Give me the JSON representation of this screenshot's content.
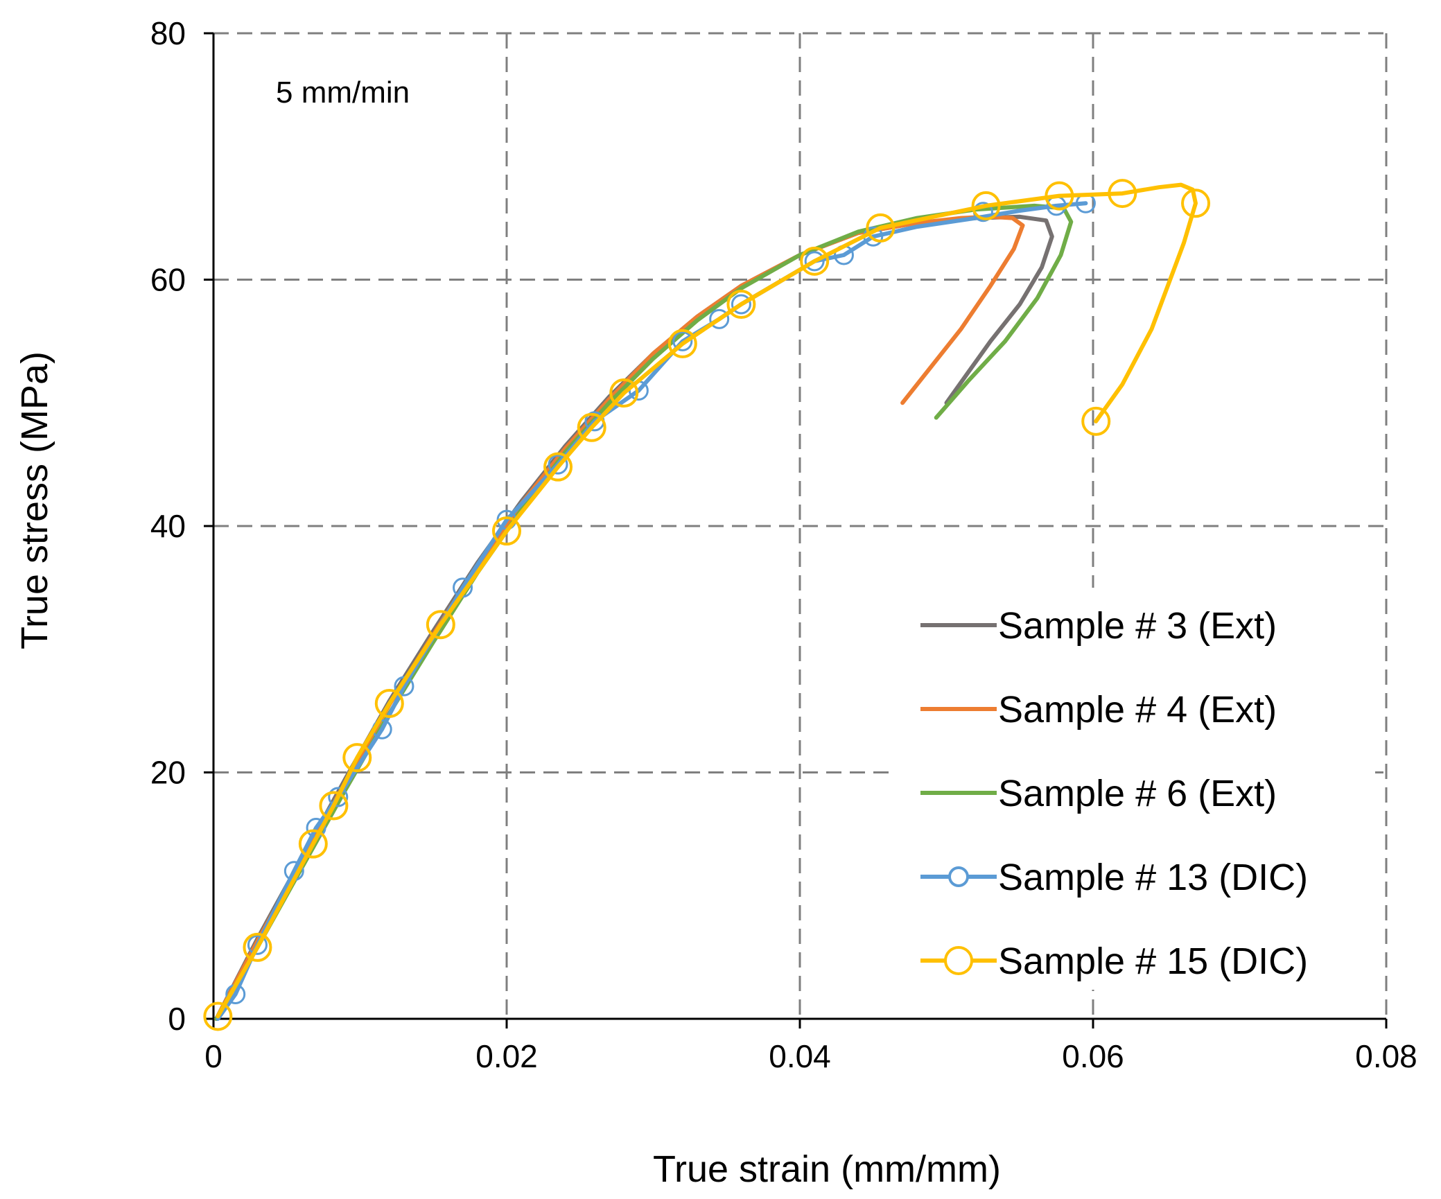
{
  "chart_data": {
    "type": "line",
    "xlabel": "True strain (mm/mm)",
    "ylabel": "True stress (MPa)",
    "annotation": "5 mm/min",
    "xlim": [
      0,
      0.08
    ],
    "ylim": [
      0,
      80
    ],
    "xticks": [
      0,
      0.02,
      0.04,
      0.06,
      0.08
    ],
    "xtick_labels": [
      "0",
      "0.02",
      "0.04",
      "0.06",
      "0.08"
    ],
    "yticks": [
      0,
      20,
      40,
      60,
      80
    ],
    "ytick_labels": [
      "0",
      "20",
      "40",
      "60",
      "80"
    ],
    "grid": "dashed",
    "legend_position": "bottom-right",
    "series": [
      {
        "name": "Sample # 3 (Ext)",
        "color": "#767171",
        "marker": "none",
        "x": [
          0.0002,
          0.003,
          0.006,
          0.009,
          0.012,
          0.015,
          0.018,
          0.021,
          0.024,
          0.027,
          0.03,
          0.033,
          0.036,
          0.04,
          0.044,
          0.048,
          0.052,
          0.055,
          0.0568,
          0.0572,
          0.0565,
          0.055,
          0.053,
          0.0515,
          0.05
        ],
        "y": [
          0,
          6.5,
          13,
          19.5,
          25.8,
          31.5,
          37,
          42,
          46.5,
          50.5,
          54,
          57,
          59.5,
          62,
          63.8,
          64.6,
          65,
          65.1,
          64.8,
          63.5,
          61,
          58,
          55,
          52.5,
          50
        ]
      },
      {
        "name": "Sample # 4 (Ext)",
        "color": "#ED7D31",
        "marker": "none",
        "x": [
          0.0002,
          0.003,
          0.006,
          0.009,
          0.012,
          0.015,
          0.018,
          0.021,
          0.024,
          0.027,
          0.03,
          0.033,
          0.036,
          0.04,
          0.044,
          0.048,
          0.051,
          0.053,
          0.0545,
          0.0552,
          0.0546,
          0.053,
          0.051,
          0.049,
          0.047
        ],
        "y": [
          0,
          6.3,
          12.8,
          19.2,
          25.5,
          31.2,
          36.8,
          41.8,
          46.3,
          50.3,
          54,
          57,
          59.5,
          62,
          63.8,
          64.6,
          65,
          65.1,
          65,
          64.4,
          62.5,
          59.5,
          56,
          53,
          50
        ]
      },
      {
        "name": "Sample # 6 (Ext)",
        "color": "#70AD47",
        "marker": "none",
        "x": [
          0.0002,
          0.003,
          0.006,
          0.009,
          0.012,
          0.015,
          0.018,
          0.021,
          0.024,
          0.027,
          0.03,
          0.033,
          0.036,
          0.04,
          0.044,
          0.048,
          0.052,
          0.056,
          0.058,
          0.0585,
          0.0578,
          0.0562,
          0.054,
          0.0515,
          0.0493
        ],
        "y": [
          0,
          5.8,
          12.2,
          18.6,
          24.8,
          30.6,
          36.2,
          41.3,
          46,
          50,
          53.6,
          56.7,
          59.3,
          62,
          63.9,
          65,
          65.7,
          66,
          65.8,
          64.7,
          62,
          58.5,
          55,
          51.8,
          48.8
        ]
      },
      {
        "name": "Sample # 13 (DIC)",
        "color": "#5B9BD5",
        "marker": "circle",
        "x": [
          0.0003,
          0.0015,
          0.003,
          0.0055,
          0.007,
          0.0085,
          0.0115,
          0.013,
          0.017,
          0.02,
          0.0235,
          0.026,
          0.029,
          0.032,
          0.0345,
          0.036,
          0.041,
          0.043,
          0.045,
          0.048,
          0.052,
          0.055,
          0.0575,
          0.0595
        ],
        "y": [
          0,
          2,
          6,
          12,
          15.5,
          18,
          23.5,
          27,
          35,
          40.5,
          45,
          48.5,
          51,
          55,
          56.8,
          58,
          61.5,
          62,
          63.5,
          64.3,
          65,
          65.6,
          66,
          66.2
        ],
        "marker_x": [
          0.0015,
          0.003,
          0.0055,
          0.007,
          0.0085,
          0.0115,
          0.013,
          0.017,
          0.02,
          0.0235,
          0.026,
          0.029,
          0.032,
          0.0345,
          0.036,
          0.041,
          0.043,
          0.045,
          0.0525,
          0.0575,
          0.0595
        ],
        "marker_y": [
          2,
          6,
          12,
          15.5,
          18,
          23.5,
          27,
          35,
          40.5,
          45,
          48.5,
          51,
          55,
          56.8,
          58,
          61.5,
          62,
          63.5,
          65.5,
          66,
          66.2
        ]
      },
      {
        "name": "Sample # 15 (DIC)",
        "color": "#FFC000",
        "marker": "circle",
        "x": [
          0.0003,
          0.003,
          0.0068,
          0.0082,
          0.0098,
          0.012,
          0.0155,
          0.02,
          0.0235,
          0.0258,
          0.028,
          0.032,
          0.036,
          0.041,
          0.0455,
          0.0527,
          0.0577,
          0.062,
          0.0645,
          0.066,
          0.0668,
          0.067,
          0.0662,
          0.064,
          0.062,
          0.0602
        ],
        "y": [
          0.2,
          5.8,
          14.2,
          17.3,
          21.2,
          25.6,
          32,
          39.6,
          44.8,
          48,
          50.8,
          54.8,
          58,
          61.5,
          64.2,
          66,
          66.8,
          67,
          67.5,
          67.7,
          67.3,
          66.2,
          63,
          56,
          51.5,
          48.5
        ],
        "marker_x": [
          0.0003,
          0.003,
          0.0068,
          0.0082,
          0.0098,
          0.012,
          0.0155,
          0.02,
          0.0235,
          0.0258,
          0.028,
          0.032,
          0.036,
          0.041,
          0.0455,
          0.0527,
          0.0577,
          0.062,
          0.067,
          0.0602
        ],
        "marker_y": [
          0.2,
          5.8,
          14.2,
          17.3,
          21.2,
          25.6,
          32,
          39.6,
          44.8,
          48,
          50.8,
          54.8,
          58,
          61.5,
          64.2,
          66,
          66.8,
          67,
          66.2,
          48.5
        ]
      }
    ]
  }
}
